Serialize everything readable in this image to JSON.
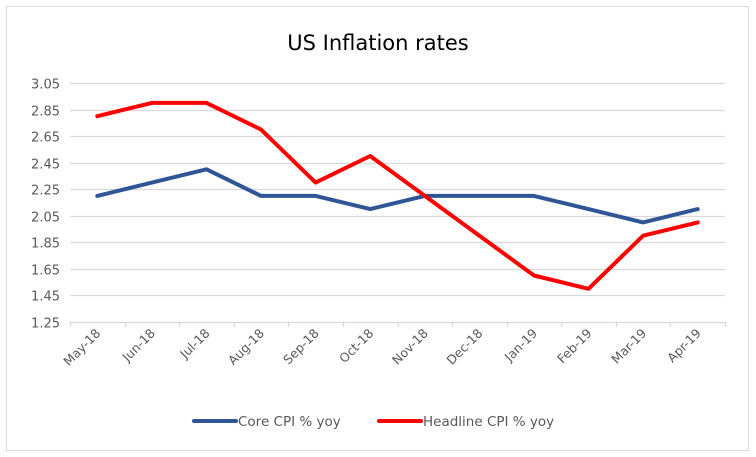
{
  "chart_data": {
    "type": "line",
    "title": "US Inflation rates",
    "xlabel": "",
    "ylabel": "",
    "categories": [
      "May-18",
      "Jun-18",
      "Jul-18",
      "Aug-18",
      "Sep-18",
      "Oct-18",
      "Nov-18",
      "Dec-18",
      "Jan-19",
      "Feb-19",
      "Mar-19",
      "Apr-19"
    ],
    "y_ticks": [
      "3.05",
      "2.85",
      "2.65",
      "2.45",
      "2.25",
      "2.05",
      "1.85",
      "1.65",
      "1.45",
      "1.25"
    ],
    "ylim": [
      1.25,
      3.05
    ],
    "grid": true,
    "legend_position": "bottom",
    "series": [
      {
        "name": "Core CPI % yoy",
        "color": "#2F5597",
        "values": [
          2.2,
          2.3,
          2.4,
          2.2,
          2.2,
          2.1,
          2.2,
          2.2,
          2.2,
          2.1,
          2.0,
          2.1
        ]
      },
      {
        "name": "Headline CPI % yoy",
        "color": "#FF0000",
        "values": [
          2.8,
          2.9,
          2.9,
          2.7,
          2.3,
          2.5,
          2.2,
          1.9,
          1.6,
          1.5,
          1.9,
          2.0
        ]
      }
    ]
  }
}
